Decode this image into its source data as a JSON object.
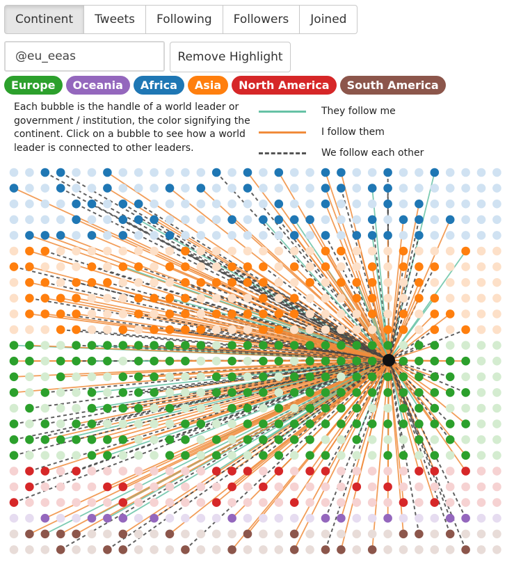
{
  "tabs": [
    {
      "label": "Continent",
      "active": true
    },
    {
      "label": "Tweets",
      "active": false
    },
    {
      "label": "Following",
      "active": false
    },
    {
      "label": "Followers",
      "active": false
    },
    {
      "label": "Joined",
      "active": false
    }
  ],
  "search": {
    "value": "@eu_eeas"
  },
  "remove_highlight_label": "Remove Highlight",
  "continents": [
    {
      "label": "Europe",
      "color": "#2ca02c"
    },
    {
      "label": "Oceania",
      "color": "#9467bd"
    },
    {
      "label": "Africa",
      "color": "#1f77b4"
    },
    {
      "label": "Asia",
      "color": "#ff7f0e"
    },
    {
      "label": "North America",
      "color": "#d62728"
    },
    {
      "label": "South America",
      "color": "#8c564b"
    }
  ],
  "description": "Each bubble is the handle of a world leader or government / institution, the color signifying the continent. Click on a bubble to see how a world leader is connected to other leaders.",
  "legend": [
    {
      "label": "They follow me",
      "color": "#66c2a5",
      "style": "solid"
    },
    {
      "label": "I follow them",
      "color": "#f08c3c",
      "style": "solid"
    },
    {
      "label": "We follow each other",
      "color": "#555555",
      "style": "dashed"
    }
  ]
}
